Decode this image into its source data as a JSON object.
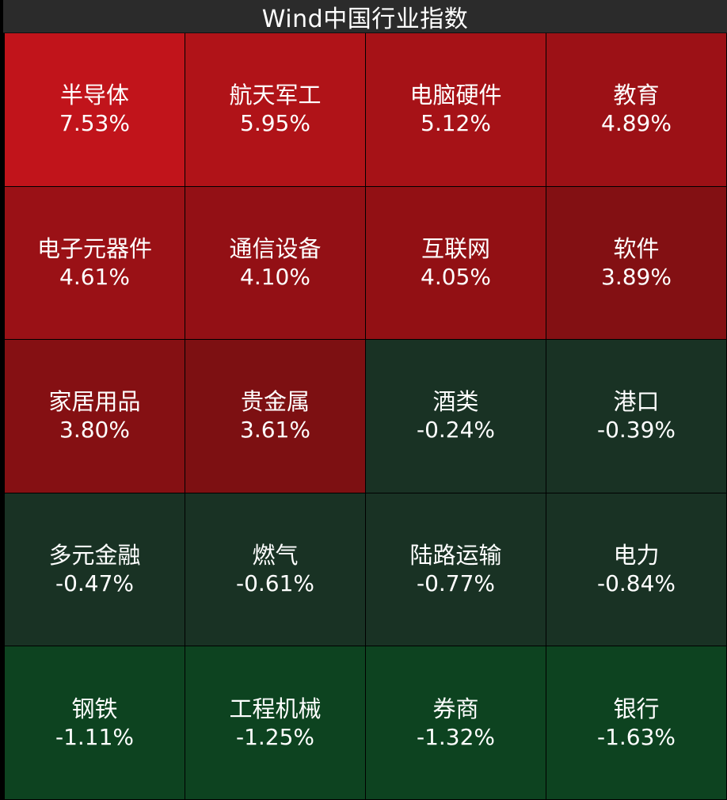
{
  "title": "Wind中国行业指数",
  "chart_data": {
    "type": "heatmap",
    "title": "Wind中国行业指数",
    "rows": 5,
    "columns": 4,
    "unit": "%",
    "cells": [
      {
        "name": "半导体",
        "value": 7.53,
        "label": "7.53%",
        "color": "#c1141b"
      },
      {
        "name": "航天军工",
        "value": 5.95,
        "label": "5.95%",
        "color": "#b01318"
      },
      {
        "name": "电脑硬件",
        "value": 5.12,
        "label": "5.12%",
        "color": "#a61217"
      },
      {
        "name": "教育",
        "value": 4.89,
        "label": "4.89%",
        "color": "#9c1116"
      },
      {
        "name": "电子元器件",
        "value": 4.61,
        "label": "4.61%",
        "color": "#9a1116"
      },
      {
        "name": "通信设备",
        "value": 4.1,
        "label": "4.10%",
        "color": "#931015"
      },
      {
        "name": "互联网",
        "value": 4.05,
        "label": "4.05%",
        "color": "#921014"
      },
      {
        "name": "软件",
        "value": 3.89,
        "label": "3.89%",
        "color": "#831013"
      },
      {
        "name": "家居用品",
        "value": 3.8,
        "label": "3.80%",
        "color": "#851013"
      },
      {
        "name": "贵金属",
        "value": 3.61,
        "label": "3.61%",
        "color": "#7d1012"
      },
      {
        "name": "酒类",
        "value": -0.24,
        "label": "-0.24%",
        "color": "#193224"
      },
      {
        "name": "港口",
        "value": -0.39,
        "label": "-0.39%",
        "color": "#193224"
      },
      {
        "name": "多元金融",
        "value": -0.47,
        "label": "-0.47%",
        "color": "#193224"
      },
      {
        "name": "燃气",
        "value": -0.61,
        "label": "-0.61%",
        "color": "#193224"
      },
      {
        "name": "陆路运输",
        "value": -0.77,
        "label": "-0.77%",
        "color": "#193224"
      },
      {
        "name": "电力",
        "value": -0.84,
        "label": "-0.84%",
        "color": "#193224"
      },
      {
        "name": "钢铁",
        "value": -1.11,
        "label": "-1.11%",
        "color": "#0d4320"
      },
      {
        "name": "工程机械",
        "value": -1.25,
        "label": "-1.25%",
        "color": "#0d4320"
      },
      {
        "name": "券商",
        "value": -1.32,
        "label": "-1.32%",
        "color": "#0d4320"
      },
      {
        "name": "银行",
        "value": -1.63,
        "label": "-1.63%",
        "color": "#0d4320"
      }
    ]
  }
}
